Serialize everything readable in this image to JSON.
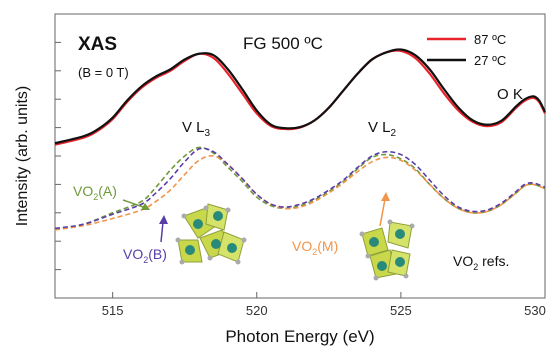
{
  "chart_data": {
    "type": "line",
    "title": "XAS",
    "subtitle": "(B = 0 T)",
    "sample_label": "FG  500 ºC",
    "xlabel": "Photon Energy (eV)",
    "ylabel": "Intensity (arb. units)",
    "xlim": [
      513,
      530
    ],
    "ylim": [
      0,
      10
    ],
    "grid": false,
    "legend_position": "top-right",
    "x_ticks": [
      515,
      520,
      525,
      530
    ],
    "x_tick_labels": [
      "515",
      "520",
      "525",
      "530"
    ],
    "y_ticks": [
      1,
      2,
      3,
      4,
      5,
      6,
      7,
      8,
      9
    ],
    "annotations": {
      "vl3": {
        "main": "V L",
        "sub": "3"
      },
      "vl2": {
        "main": "V L",
        "sub": "2"
      },
      "ok": "O K",
      "vo2a": {
        "main": "VO",
        "sub": "2",
        "rest": "(A)"
      },
      "vo2b": {
        "main": "VO",
        "sub": "2",
        "rest": "(B)"
      },
      "vo2m": {
        "main": "VO",
        "sub": "2",
        "rest": "(M)"
      },
      "refs": {
        "main": "VO",
        "sub": "2",
        "rest": " refs."
      }
    },
    "series": [
      {
        "name": "87 ºC",
        "color": "#e8232a",
        "style": "solid",
        "x": [
          513,
          514,
          514.5,
          515,
          515.5,
          516,
          516.5,
          517,
          517.5,
          518,
          518.5,
          519,
          519.5,
          520,
          520.5,
          521,
          521.5,
          522,
          522.5,
          523,
          523.5,
          524,
          524.5,
          525,
          525.5,
          526,
          526.5,
          527,
          527.5,
          528,
          528.5,
          529,
          529.3,
          529.6,
          529.8,
          530
        ],
        "y": [
          5.4,
          5.65,
          5.9,
          6.3,
          6.9,
          7.4,
          7.75,
          8.0,
          8.35,
          8.6,
          8.45,
          7.9,
          7.2,
          6.5,
          6.05,
          5.95,
          6.0,
          6.25,
          6.7,
          7.3,
          7.9,
          8.4,
          8.65,
          8.7,
          8.45,
          7.9,
          7.2,
          6.6,
          6.2,
          6.05,
          6.2,
          6.7,
          6.95,
          7.05,
          6.9,
          6.5
        ]
      },
      {
        "name": "27 ºC",
        "color": "#111111",
        "style": "solid",
        "x": [
          513,
          514,
          514.5,
          515,
          515.5,
          516,
          516.5,
          517,
          517.5,
          518,
          518.5,
          519,
          519.5,
          520,
          520.5,
          521,
          521.5,
          522,
          522.5,
          523,
          523.5,
          524,
          524.5,
          525,
          525.5,
          526,
          526.5,
          527,
          527.5,
          528,
          528.5,
          529,
          529.3,
          529.6,
          529.8,
          530
        ],
        "y": [
          5.45,
          5.7,
          5.95,
          6.35,
          6.95,
          7.45,
          7.8,
          8.05,
          8.4,
          8.6,
          8.55,
          8.05,
          7.35,
          6.6,
          6.1,
          5.98,
          6.02,
          6.25,
          6.7,
          7.3,
          7.9,
          8.4,
          8.65,
          8.75,
          8.55,
          8.05,
          7.35,
          6.7,
          6.25,
          6.1,
          6.25,
          6.75,
          7.0,
          7.1,
          6.95,
          6.55
        ]
      },
      {
        "name": "VO2(A)",
        "color": "#6f9a3a",
        "style": "dashed",
        "x": [
          513,
          514,
          515,
          516,
          516.5,
          517,
          517.5,
          518,
          518.5,
          519,
          519.5,
          520,
          520.5,
          521,
          521.5,
          522,
          522.5,
          523,
          523.5,
          524,
          524.5,
          525,
          525.5,
          526,
          526.5,
          527,
          527.5,
          528,
          528.5,
          529,
          529.3,
          529.6,
          530
        ],
        "y": [
          2.4,
          2.6,
          3.0,
          3.4,
          3.9,
          4.5,
          5.0,
          5.3,
          5.1,
          4.6,
          4.1,
          3.55,
          3.25,
          3.15,
          3.25,
          3.45,
          3.75,
          4.1,
          4.55,
          4.95,
          5.05,
          4.9,
          4.55,
          4.0,
          3.5,
          3.15,
          3.0,
          3.05,
          3.3,
          3.7,
          3.95,
          4.0,
          3.85
        ]
      },
      {
        "name": "VO2(M)",
        "color": "#f2954a",
        "style": "dashed",
        "x": [
          513,
          514,
          515,
          516,
          516.5,
          517,
          517.5,
          518,
          518.5,
          519,
          519.5,
          520,
          520.5,
          521,
          521.5,
          522,
          522.5,
          523,
          523.5,
          524,
          524.5,
          525,
          525.5,
          526,
          526.5,
          527,
          527.5,
          528,
          528.5,
          529,
          529.3,
          529.6,
          530
        ],
        "y": [
          2.4,
          2.55,
          2.8,
          3.1,
          3.4,
          3.8,
          4.35,
          4.85,
          5.0,
          4.7,
          4.2,
          3.65,
          3.3,
          3.15,
          3.2,
          3.4,
          3.7,
          4.05,
          4.45,
          4.8,
          4.95,
          4.85,
          4.5,
          4.0,
          3.5,
          3.15,
          3.0,
          3.05,
          3.3,
          3.7,
          3.95,
          4.0,
          3.85
        ]
      },
      {
        "name": "VO2(B)",
        "color": "#5a3ea8",
        "style": "dashed",
        "x": [
          513,
          514,
          515,
          516,
          516.5,
          517,
          517.5,
          518,
          518.5,
          519,
          519.5,
          520,
          520.5,
          521,
          521.5,
          522,
          522.5,
          523,
          523.5,
          524,
          524.5,
          525,
          525.5,
          526,
          526.5,
          527,
          527.5,
          528,
          528.5,
          529,
          529.3,
          529.6,
          530
        ],
        "y": [
          2.45,
          2.6,
          2.95,
          3.3,
          3.7,
          4.2,
          4.8,
          5.25,
          5.15,
          4.7,
          4.2,
          3.65,
          3.3,
          3.2,
          3.3,
          3.5,
          3.8,
          4.15,
          4.6,
          5.0,
          5.15,
          5.05,
          4.7,
          4.15,
          3.6,
          3.2,
          3.05,
          3.1,
          3.35,
          3.75,
          4.0,
          4.05,
          3.9
        ]
      }
    ]
  }
}
